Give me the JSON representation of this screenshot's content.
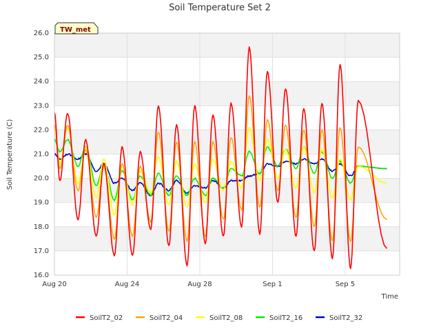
{
  "chart_data": {
    "type": "line",
    "title": "Soil Temperature Set 2",
    "xlabel": "Time",
    "ylabel": "Soil Temperature (C)",
    "ylim": [
      16.0,
      26.0
    ],
    "xlim_days": [
      0,
      19
    ],
    "y_ticks": [
      "16.0",
      "17.0",
      "18.0",
      "19.0",
      "20.0",
      "21.0",
      "22.0",
      "23.0",
      "24.0",
      "25.0",
      "26.0"
    ],
    "x_ticks": [
      {
        "label": "Aug 20",
        "day": 0
      },
      {
        "label": "Aug 24",
        "day": 4
      },
      {
        "label": "Aug 28",
        "day": 8
      },
      {
        "label": "Sep 1",
        "day": 12
      },
      {
        "label": "Sep 5",
        "day": 16
      }
    ],
    "site_badge": "TW_met",
    "grid": true,
    "legend_position": "bottom",
    "series": [
      {
        "name": "SoilT2_02",
        "color": "#ff0000",
        "daily_max": [
          22.7,
          21.6,
          20.6,
          21.3,
          21.1,
          23.0,
          22.2,
          23.0,
          22.6,
          23.1,
          25.4,
          24.4,
          23.7,
          22.9,
          23.1,
          24.7,
          23.2
        ],
        "daily_min": [
          19.9,
          18.3,
          17.6,
          16.8,
          16.8,
          17.9,
          17.2,
          16.4,
          17.3,
          17.6,
          18.0,
          17.7,
          19.0,
          17.6,
          17.0,
          16.7,
          16.3
        ],
        "end_value": 17.1
      },
      {
        "name": "SoilT2_04",
        "color": "#ffa500",
        "daily_max": [
          22.2,
          21.2,
          20.5,
          20.6,
          20.5,
          21.9,
          21.5,
          21.5,
          21.5,
          21.7,
          23.4,
          22.4,
          22.2,
          22.0,
          22.0,
          22.1,
          21.3
        ],
        "daily_min": [
          20.4,
          19.5,
          18.4,
          17.5,
          17.6,
          18.2,
          17.8,
          17.4,
          17.6,
          18.3,
          18.7,
          18.8,
          19.5,
          18.4,
          18.0,
          17.4,
          17.4
        ],
        "end_value": 18.3
      },
      {
        "name": "SoilT2_08",
        "color": "#ffff00",
        "daily_max": [
          22.1,
          21.3,
          20.8,
          20.5,
          20.3,
          20.9,
          20.7,
          20.6,
          20.8,
          20.7,
          22.1,
          21.6,
          21.2,
          21.3,
          21.2,
          20.8,
          20.5
        ],
        "daily_min": [
          20.6,
          19.8,
          19.2,
          18.5,
          18.9,
          19.4,
          18.9,
          18.8,
          19.0,
          19.5,
          19.6,
          19.9,
          20.0,
          19.6,
          19.4,
          19.2,
          19.1
        ],
        "end_value": 19.8
      },
      {
        "name": "SoilT2_16",
        "color": "#00ee00",
        "daily_max": [
          21.6,
          21.3,
          20.6,
          20.3,
          20.1,
          20.2,
          20.1,
          20.0,
          20.0,
          20.4,
          21.1,
          21.3,
          21.2,
          21.3,
          21.1,
          20.7,
          20.5
        ],
        "daily_min": [
          21.1,
          20.5,
          19.7,
          19.1,
          19.1,
          19.3,
          19.3,
          19.3,
          19.3,
          19.6,
          20.1,
          20.2,
          20.5,
          20.4,
          20.2,
          20.0,
          19.8
        ],
        "end_value": 20.4
      },
      {
        "name": "SoilT2_32",
        "color": "#0000cc",
        "daily_max": [
          21.0,
          21.0,
          20.6,
          20.0,
          19.8,
          19.8,
          19.9,
          19.7,
          19.9,
          19.9,
          20.1,
          20.6,
          20.7,
          20.8,
          20.8,
          20.6,
          20.5
        ],
        "daily_min": [
          20.8,
          20.8,
          20.3,
          19.8,
          19.5,
          19.3,
          19.5,
          19.4,
          19.6,
          19.6,
          19.9,
          20.2,
          20.5,
          20.6,
          20.6,
          20.3,
          20.1
        ],
        "end_value": 20.4
      }
    ]
  }
}
